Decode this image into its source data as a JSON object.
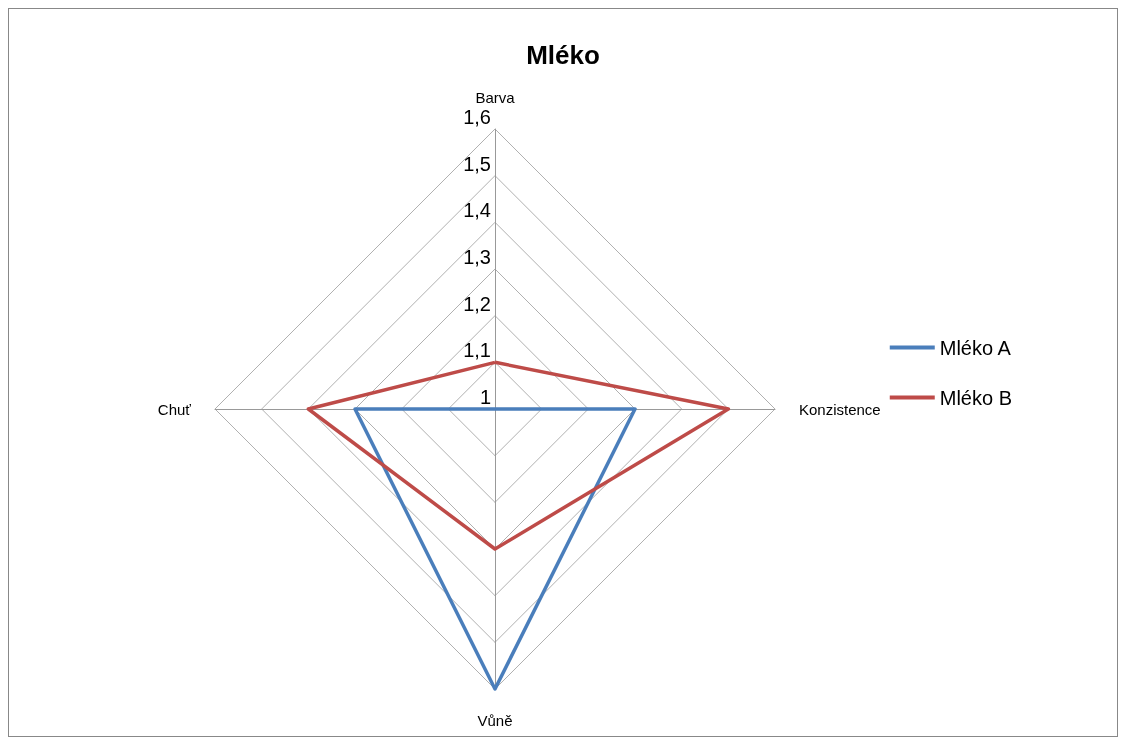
{
  "chart_data": {
    "type": "radar",
    "title": "Mléko",
    "categories": [
      "Barva",
      "Konzistence",
      "Vůně",
      "Chuť"
    ],
    "series": [
      {
        "name": "Mléko A",
        "color": "#4a7ebb",
        "values": [
          1,
          1.3,
          1.6,
          1.3
        ]
      },
      {
        "name": "Mléko B",
        "color": "#be4b48",
        "values": [
          1.1,
          1.5,
          1.3,
          1.4
        ]
      }
    ],
    "ylim": [
      1,
      1.6
    ],
    "yticks": [
      1,
      {
        "value": 1.1,
        "label": "1,1"
      },
      {
        "value": 1.2,
        "label": "1,2"
      },
      {
        "value": 1.3,
        "label": "1,3"
      },
      {
        "value": 1.4,
        "label": "1,4"
      },
      {
        "value": 1.5,
        "label": "1,5"
      },
      {
        "value": 1.6,
        "label": "1,6"
      }
    ],
    "grid": true,
    "legend": "right",
    "marker": "none",
    "line_style": "solid"
  }
}
